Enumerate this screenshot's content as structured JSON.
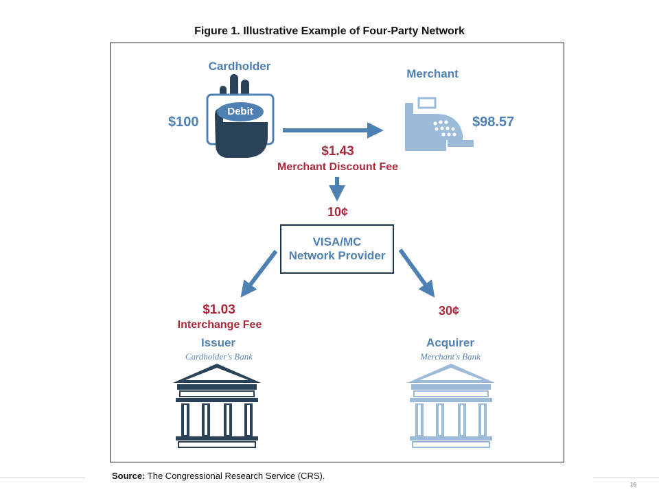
{
  "figure": {
    "title": "Figure 1. Illustrative Example of Four-Party Network"
  },
  "cardholder": {
    "label": "Cardholder",
    "amount": "$100",
    "card_text": "Debit",
    "icon": "hand-holding-card-icon"
  },
  "merchant": {
    "label": "Merchant",
    "amount": "$98.57",
    "icon": "cash-register-icon"
  },
  "merchant_fee": {
    "amount": "$1.43",
    "label": "Merchant Discount Fee"
  },
  "network": {
    "fee": "10¢",
    "line1": "VISA/MC",
    "line2": "Network Provider"
  },
  "issuer": {
    "fee_amount": "$1.03",
    "fee_label": "Interchange Fee",
    "label": "Issuer",
    "sublabel": "Cardholder's Bank",
    "icon": "bank-building-icon"
  },
  "acquirer": {
    "fee_amount": "30¢",
    "label": "Acquirer",
    "sublabel": "Merchant's Bank",
    "icon": "bank-building-icon"
  },
  "source": {
    "prefix": "Source:",
    "text": " The Congressional Research Service (CRS)."
  },
  "page_number": "16",
  "colors": {
    "blue": "#4f80b3",
    "light_blue": "#9bbbd9",
    "red": "#a8283a",
    "navy": "#1e3550",
    "dark_slate": "#2a4257"
  }
}
